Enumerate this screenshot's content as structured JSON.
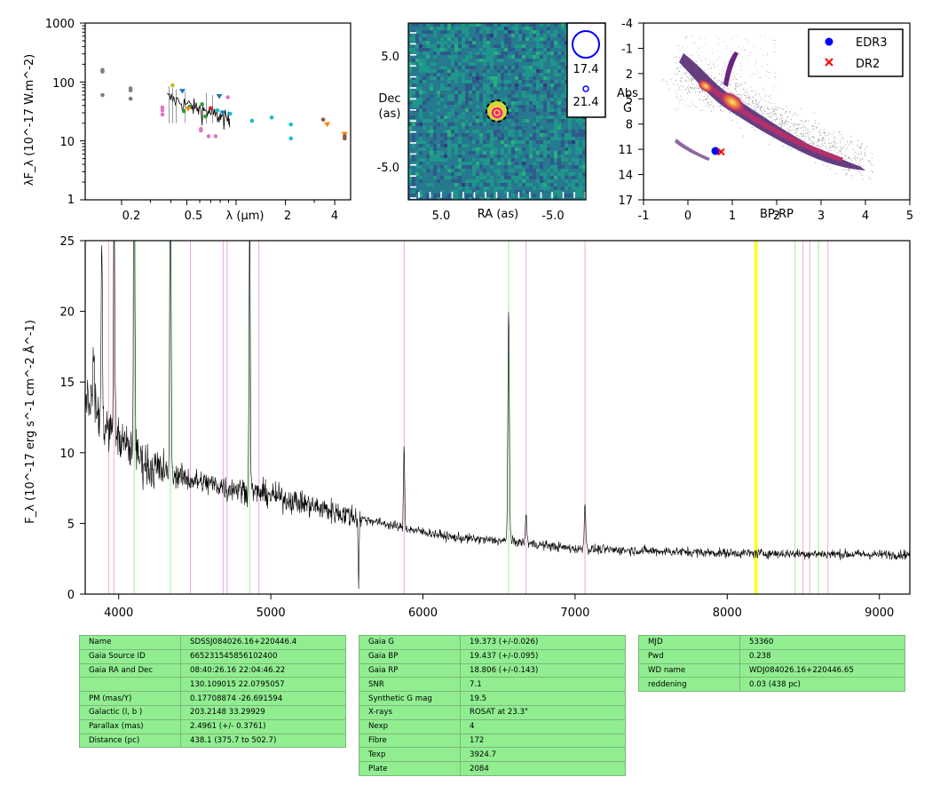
{
  "colors": {
    "table_bg": "#90ee90",
    "spectrum_line": "#000000",
    "cmd_edr3": "#0000ff",
    "cmd_dr2": "#ff0000",
    "image_circle": "#0000ff",
    "marker_yellow": "#ffff00",
    "line_pink": "#f4a6b8",
    "line_green": "#90ee90",
    "line_violet": "#dda0dd"
  },
  "sed": {
    "ylabel": "λF_λ (10^-17 W.m^-2)",
    "xlabel": "λ (μm)",
    "yticks": [
      "1",
      "10",
      "100",
      "1000"
    ],
    "xticks": [
      "0.2",
      "0.5",
      "2",
      "4"
    ]
  },
  "image": {
    "xlabel": "RA (as)",
    "ylabel_line1": "Dec",
    "ylabel_line2": "(as)",
    "xticks": [
      "5.0",
      "-5.0"
    ],
    "yticks": [
      "5.0",
      "-5.0"
    ],
    "legend_mags": [
      "17.4",
      "21.4"
    ]
  },
  "cmd": {
    "xlabel": "BP-RP",
    "ylabel_line1": "Abs",
    "ylabel_line2": "G",
    "xticks": [
      "-1",
      "0",
      "1",
      "2",
      "3",
      "4",
      "5"
    ],
    "yticks": [
      "-4",
      "-1",
      "2",
      "5",
      "8",
      "11",
      "14",
      "17"
    ],
    "legend": [
      "EDR3",
      "DR2"
    ]
  },
  "spectrum": {
    "ylabel": "F_λ (10^-17 erg s^-1 cm^-2 Å^-1)",
    "xticks": [
      "4000",
      "5000",
      "6000",
      "7000",
      "8000",
      "9000"
    ],
    "yticks": [
      "0",
      "5",
      "10",
      "15",
      "20",
      "25"
    ]
  },
  "chart_data": [
    {
      "type": "scatter",
      "xlabel": "λ (μm)",
      "ylabel": "λF_λ (10^-17 W.m^-2)",
      "xscale": "log",
      "yscale": "log",
      "xlim": [
        0.12,
        5.0
      ],
      "ylim": [
        1,
        1000
      ],
      "series": [
        {
          "color": "#7f7f7f",
          "x": [
            0.153,
            0.153,
            0.153,
            0.227,
            0.227,
            0.227
          ],
          "y": [
            160,
            150,
            60,
            78,
            72,
            52
          ]
        },
        {
          "color": "#e377c2",
          "x": [
            0.355,
            0.355,
            0.355,
            0.61,
            0.75,
            0.89,
            0.61,
            0.68
          ],
          "y": [
            37,
            33,
            28,
            15,
            12,
            55,
            16,
            12
          ]
        },
        {
          "color": "#17becf",
          "x": [
            0.77,
            0.92,
            1.25,
            1.65,
            2.16,
            2.16
          ],
          "y": [
            33,
            29,
            22,
            25,
            19,
            11
          ]
        },
        {
          "color": "#2ca02c",
          "x": [
            0.48,
            0.62,
            0.65,
            0.52
          ],
          "y": [
            32,
            42,
            26,
            38
          ]
        },
        {
          "color": "#ff7f0e",
          "x": [
            0.51,
            3.6,
            4.6
          ],
          "y": [
            35,
            19,
            13
          ]
        },
        {
          "color": "#8c564b",
          "x": [
            3.4,
            4.6,
            4.6
          ],
          "y": [
            23,
            12,
            11
          ]
        },
        {
          "color": "#1f77b4",
          "x": [
            0.47,
            0.79,
            0.83
          ],
          "y": [
            70,
            57,
            30
          ]
        },
        {
          "color": "#d62728",
          "x": [
            0.7
          ],
          "y": [
            36
          ]
        },
        {
          "color": "#bcbd22",
          "x": [
            0.41
          ],
          "y": [
            88
          ]
        }
      ]
    },
    {
      "type": "heatmap",
      "xlabel": "RA (as)",
      "ylabel": "Dec (as)",
      "xlim": [
        10,
        -10
      ],
      "ylim": [
        -10,
        10
      ],
      "source_center": [
        0,
        0
      ],
      "legend_mags": [
        17.4,
        21.4
      ]
    },
    {
      "type": "scatter",
      "xlabel": "BP-RP",
      "ylabel": "Abs G",
      "xlim": [
        -1,
        5
      ],
      "ylim": [
        17,
        -4
      ],
      "series": [
        {
          "name": "EDR3",
          "x": [
            0.62
          ],
          "y": [
            11.2
          ]
        },
        {
          "name": "DR2",
          "x": [
            0.75
          ],
          "y": [
            11.3
          ]
        }
      ]
    },
    {
      "type": "line",
      "xlabel": "",
      "ylabel": "F_λ (10^-17 erg s^-1 cm^-2 Å^-1)",
      "xlim": [
        3780,
        9200
      ],
      "ylim": [
        0,
        25
      ],
      "continuum": {
        "x": [
          3800,
          3900,
          4000,
          4200,
          4500,
          5000,
          5500,
          5900,
          6200,
          6600,
          7000,
          8000,
          9000,
          9200
        ],
        "y": [
          14,
          12,
          11,
          9,
          8,
          7,
          5.6,
          4.6,
          4.0,
          3.7,
          3.2,
          2.9,
          2.8,
          2.8
        ]
      },
      "emission_lines": {
        "x": [
          3835,
          3889,
          3970,
          4102,
          4340,
          4471,
          4713,
          4861,
          5876,
          6563,
          6678,
          7065
        ],
        "peak": [
          18,
          25,
          30,
          40,
          35,
          8,
          7,
          27,
          10.5,
          20,
          5.5,
          6.5
        ]
      },
      "absorption_dip": {
        "x": 5577,
        "y": 0.6
      },
      "vertical_lines": {
        "pink": [
          3934,
          3969,
          8498,
          8542,
          8662
        ],
        "green": [
          4102,
          4340,
          4861,
          6563,
          8446,
          8600
        ],
        "violet": [
          4471,
          4686,
          4713,
          4922,
          5876,
          6678,
          7065
        ],
        "yellow": [
          8183,
          8195
        ]
      }
    }
  ],
  "tables": [
    {
      "rows": [
        [
          "Name",
          "SDSSJ084026.16+220446.4"
        ],
        [
          "Gaia Source ID",
          "665231545856102400"
        ],
        [
          "Gaia RA and Dec",
          "08:40:26.16    22:04:46.22"
        ],
        [
          "",
          "130.109015    22.0795057"
        ],
        [
          "PM (mas/Y)",
          "0.17708874    -26.691594"
        ],
        [
          "Galactic (l, b )",
          "203.2148    33.29929"
        ],
        [
          "Parallax (mas)",
          "2.4961 (+/- 0.3761)"
        ],
        [
          "Distance (pc)",
          "438.1 (375.7 to 502.7)"
        ]
      ]
    },
    {
      "rows": [
        [
          "Gaia G",
          "19.373 (+/-0.026)"
        ],
        [
          "Gaia BP",
          "19.437 (+/-0.095)"
        ],
        [
          "Gaia RP",
          "18.806 (+/-0.143)"
        ],
        [
          "SNR",
          "7.1"
        ],
        [
          "Synthetic G mag",
          "19.5"
        ],
        [
          "X-rays",
          "ROSAT at 23.3\""
        ],
        [
          "Nexp",
          "4"
        ],
        [
          "Fibre",
          "172"
        ],
        [
          "Texp",
          "3924.7"
        ],
        [
          "Plate",
          "2084"
        ]
      ]
    },
    {
      "rows": [
        [
          "MJD",
          "53360"
        ],
        [
          "Pwd",
          "0.238"
        ],
        [
          "WD name",
          "WDJ084026.16+220446.65"
        ],
        [
          "reddening",
          "0.03 (438 pc)"
        ]
      ]
    }
  ]
}
